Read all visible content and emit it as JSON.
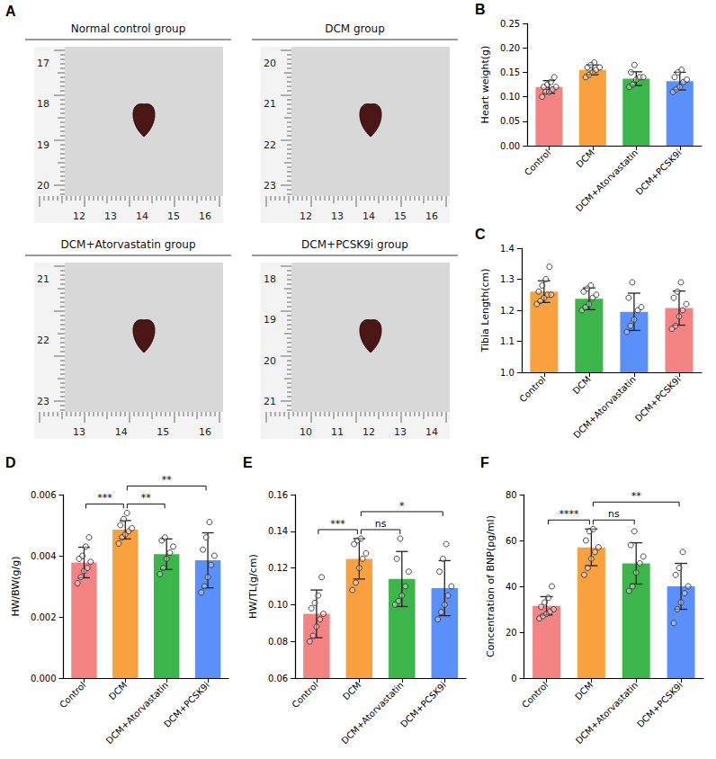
{
  "photo_panel": {
    "panel_label": "A",
    "photos": [
      {
        "title": "Normal control group",
        "ruler_vertical": [
          "17",
          "18",
          "19",
          "20"
        ],
        "ruler_horizontal": [
          "12",
          "13",
          "14",
          "15",
          "16"
        ]
      },
      {
        "title": "DCM group",
        "ruler_vertical": [
          "20",
          "21",
          "22",
          "23"
        ],
        "ruler_horizontal": [
          "12",
          "13",
          "14",
          "15",
          "16"
        ]
      },
      {
        "title": "DCM+Atorvastatin group",
        "ruler_vertical": [
          "21",
          "22",
          "23"
        ],
        "ruler_horizontal": [
          "13",
          "14",
          "15",
          "16"
        ]
      },
      {
        "title": "DCM+PCSK9i group",
        "ruler_vertical": [
          "18",
          "19",
          "20",
          "21"
        ],
        "ruler_horizontal": [
          "10",
          "11",
          "12",
          "13",
          "14"
        ]
      }
    ]
  },
  "chart_data": [
    {
      "panel_label": "B",
      "type": "bar",
      "y_label": "Heart weight(g)",
      "categories": [
        "Control",
        "DCM",
        "DCM+Atorvastatin",
        "DCM+PCSK9i"
      ],
      "values": [
        0.12,
        0.155,
        0.137,
        0.132
      ],
      "errors": [
        0.013,
        0.01,
        0.014,
        0.018
      ],
      "points": [
        [
          0.1,
          0.11,
          0.11,
          0.115,
          0.12,
          0.12,
          0.125,
          0.13,
          0.14
        ],
        [
          0.14,
          0.145,
          0.15,
          0.155,
          0.16,
          0.16,
          0.165,
          0.17
        ],
        [
          0.12,
          0.125,
          0.135,
          0.14,
          0.14,
          0.15,
          0.165
        ],
        [
          0.11,
          0.115,
          0.12,
          0.13,
          0.135,
          0.14,
          0.15,
          0.155
        ]
      ],
      "colors": [
        "#f48484",
        "#f9a03f",
        "#3cb54a",
        "#5b8ff9"
      ],
      "ylim": [
        0,
        0.25
      ],
      "yticks": [
        {
          "value": 0,
          "label": "0.00"
        },
        {
          "value": 0.05,
          "label": "0.05"
        },
        {
          "value": 0.1,
          "label": "0.10"
        },
        {
          "value": 0.15,
          "label": "0.15"
        },
        {
          "value": 0.2,
          "label": "0.20"
        },
        {
          "value": 0.25,
          "label": "0.25"
        }
      ],
      "grid": false,
      "comparisons": []
    },
    {
      "panel_label": "C",
      "type": "bar",
      "y_label": "Tibia Length(cm)",
      "categories": [
        "Control",
        "DCM",
        "DCM+Atorvastatin",
        "DCM+PCSK9i"
      ],
      "values": [
        1.26,
        1.237,
        1.195,
        1.207
      ],
      "errors": [
        0.035,
        0.035,
        0.06,
        0.055
      ],
      "points": [
        [
          1.22,
          1.23,
          1.24,
          1.25,
          1.25,
          1.26,
          1.28,
          1.3,
          1.34
        ],
        [
          1.2,
          1.21,
          1.22,
          1.24,
          1.25,
          1.26,
          1.27,
          1.28
        ],
        [
          1.13,
          1.15,
          1.17,
          1.2,
          1.21,
          1.24,
          1.29
        ],
        [
          1.14,
          1.15,
          1.18,
          1.2,
          1.22,
          1.24,
          1.26,
          1.29
        ]
      ],
      "colors": [
        "#f9a03f",
        "#3cb54a",
        "#5b8ff9",
        "#f48484"
      ],
      "ylim": [
        1.0,
        1.4
      ],
      "yticks": [
        {
          "value": 1.0,
          "label": "1.0"
        },
        {
          "value": 1.1,
          "label": "1.1"
        },
        {
          "value": 1.2,
          "label": "1.2"
        },
        {
          "value": 1.3,
          "label": "1.3"
        },
        {
          "value": 1.4,
          "label": "1.4"
        }
      ],
      "grid": false,
      "comparisons": []
    },
    {
      "panel_label": "D",
      "type": "bar",
      "y_label": "HW/BW(g/g)",
      "categories": [
        "Control",
        "DCM",
        "DCM+Atorvastatin",
        "DCM+PCSK9i"
      ],
      "values": [
        0.00378,
        0.00485,
        0.00405,
        0.00385
      ],
      "errors": [
        0.0005,
        0.0003,
        0.0005,
        0.0009
      ],
      "points": [
        [
          0.0031,
          0.0033,
          0.0035,
          0.0036,
          0.0038,
          0.0039,
          0.004,
          0.0043,
          0.0046
        ],
        [
          0.0044,
          0.0046,
          0.0047,
          0.0048,
          0.0049,
          0.005,
          0.0052,
          0.0054
        ],
        [
          0.0034,
          0.0036,
          0.0039,
          0.0041,
          0.0043,
          0.0045,
          0.0046
        ],
        [
          0.0028,
          0.003,
          0.0033,
          0.0037,
          0.004,
          0.0042,
          0.0046,
          0.0051
        ]
      ],
      "colors": [
        "#f48484",
        "#f9a03f",
        "#3cb54a",
        "#5b8ff9"
      ],
      "ylim": [
        0,
        0.006
      ],
      "yticks": [
        {
          "value": 0,
          "label": "0.000"
        },
        {
          "value": 0.002,
          "label": "0.002"
        },
        {
          "value": 0.004,
          "label": "0.004"
        },
        {
          "value": 0.006,
          "label": "0.006"
        }
      ],
      "grid": false,
      "comparisons": [
        {
          "from": "Control",
          "to": "DCM",
          "label": "***"
        },
        {
          "from": "DCM",
          "to": "DCM+Atorvastatin",
          "label": "**"
        },
        {
          "from": "DCM",
          "to": "DCM+PCSK9i",
          "label": "**"
        }
      ]
    },
    {
      "panel_label": "E",
      "type": "bar",
      "y_label": "HW/TL(g/cm)",
      "categories": [
        "Control",
        "DCM",
        "DCM+Atorvastatin",
        "DCM+PCSK9i"
      ],
      "values": [
        0.095,
        0.125,
        0.114,
        0.109
      ],
      "errors": [
        0.013,
        0.011,
        0.015,
        0.015
      ],
      "points": [
        [
          0.08,
          0.083,
          0.088,
          0.092,
          0.095,
          0.098,
          0.101,
          0.105,
          0.115
        ],
        [
          0.108,
          0.112,
          0.12,
          0.125,
          0.128,
          0.133,
          0.135,
          0.136
        ],
        [
          0.1,
          0.102,
          0.105,
          0.11,
          0.118,
          0.125,
          0.136
        ],
        [
          0.092,
          0.096,
          0.1,
          0.105,
          0.11,
          0.118,
          0.125,
          0.133
        ]
      ],
      "colors": [
        "#f48484",
        "#f9a03f",
        "#3cb54a",
        "#5b8ff9"
      ],
      "ylim": [
        0.06,
        0.16
      ],
      "yticks": [
        {
          "value": 0.06,
          "label": "0.06"
        },
        {
          "value": 0.08,
          "label": "0.08"
        },
        {
          "value": 0.1,
          "label": "0.10"
        },
        {
          "value": 0.12,
          "label": "0.12"
        },
        {
          "value": 0.14,
          "label": "0.14"
        },
        {
          "value": 0.16,
          "label": "0.16"
        }
      ],
      "grid": false,
      "comparisons": [
        {
          "from": "Control",
          "to": "DCM",
          "label": "***"
        },
        {
          "from": "DCM",
          "to": "DCM+Atorvastatin",
          "label": "ns"
        },
        {
          "from": "DCM",
          "to": "DCM+PCSK9i",
          "label": "*"
        }
      ]
    },
    {
      "panel_label": "F",
      "type": "bar",
      "y_label": "Concentration of BNP(pg/ml)",
      "categories": [
        "Control",
        "DCM",
        "DCM+Atorvastatin",
        "DCM+PCSK9i"
      ],
      "values": [
        31.5,
        57,
        50,
        40
      ],
      "errors": [
        4,
        8,
        9,
        10
      ],
      "points": [
        [
          26,
          27,
          28,
          29,
          30,
          31,
          33,
          35,
          40
        ],
        [
          45,
          48,
          52,
          55,
          57,
          60,
          64,
          65
        ],
        [
          38,
          40,
          46,
          50,
          53,
          58,
          64
        ],
        [
          24,
          30,
          33,
          37,
          40,
          45,
          48,
          55
        ]
      ],
      "colors": [
        "#f48484",
        "#f9a03f",
        "#3cb54a",
        "#5b8ff9"
      ],
      "ylim": [
        0,
        80
      ],
      "yticks": [
        0,
        20,
        40,
        60,
        80
      ],
      "grid": false,
      "comparisons": [
        {
          "from": "Control",
          "to": "DCM",
          "label": "****"
        },
        {
          "from": "DCM",
          "to": "DCM+Atorvastatin",
          "label": "ns"
        },
        {
          "from": "DCM",
          "to": "DCM+PCSK9i",
          "label": "**"
        }
      ]
    }
  ]
}
